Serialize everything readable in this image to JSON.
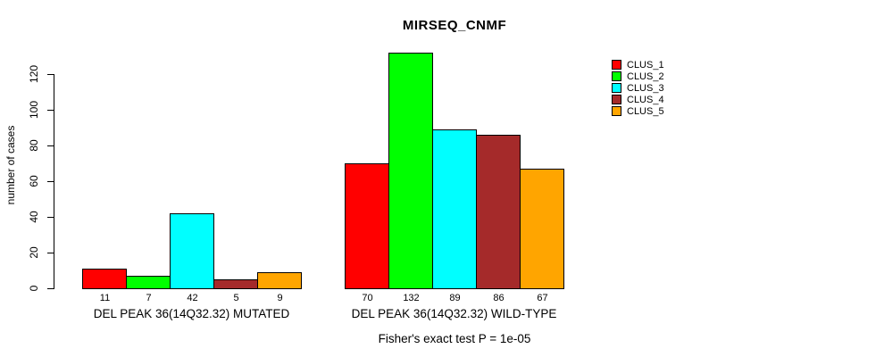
{
  "title": "MIRSEQ_CNMF",
  "axis": {
    "y_label": "number of cases",
    "y_ticks": [
      0,
      20,
      40,
      60,
      80,
      100,
      120
    ]
  },
  "groups": [
    {
      "label": "DEL PEAK 36(14Q32.32) MUTATED"
    },
    {
      "label": "DEL PEAK 36(14Q32.32) WILD-TYPE"
    }
  ],
  "caption": "Fisher's exact test P = 1e-05",
  "colors": {
    "clus_1": "#FF0000",
    "clus_2": "#00FF00",
    "clus_3": "#00FFFF",
    "clus_4": "#A52A2A",
    "clus_5": "#FFA500",
    "bar_border": "#000000",
    "background": "#FFFFFF"
  },
  "chart_data": {
    "type": "bar",
    "title": "MIRSEQ_CNMF",
    "xlabel": "",
    "ylabel": "number of cases",
    "ylim": [
      0,
      132
    ],
    "yticks": [
      0,
      20,
      40,
      60,
      80,
      100,
      120
    ],
    "grid": false,
    "legend_position": "right",
    "bar_value_labels": true,
    "categories": [
      "DEL PEAK 36(14Q32.32) MUTATED",
      "DEL PEAK 36(14Q32.32) WILD-TYPE"
    ],
    "series": [
      {
        "name": "CLUS_1",
        "color": "#FF0000",
        "values": [
          11,
          70
        ]
      },
      {
        "name": "CLUS_2",
        "color": "#00FF00",
        "values": [
          7,
          132
        ]
      },
      {
        "name": "CLUS_3",
        "color": "#00FFFF",
        "values": [
          42,
          89
        ]
      },
      {
        "name": "CLUS_4",
        "color": "#A52A2A",
        "values": [
          5,
          86
        ]
      },
      {
        "name": "CLUS_5",
        "color": "#FFA500",
        "values": [
          9,
          67
        ]
      }
    ],
    "annotation": "Fisher's exact test P = 1e-05"
  }
}
